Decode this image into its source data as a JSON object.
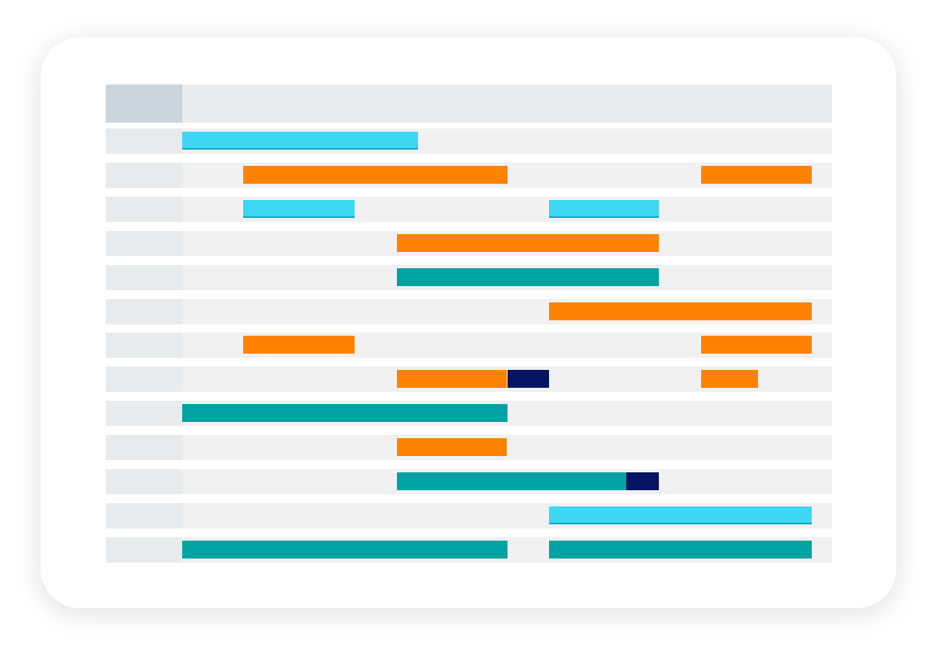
{
  "colors": {
    "orange": "#ff8200",
    "light_blue": "#3dd7f4",
    "light_blue_edge": "#12a8c4",
    "teal": "#00a3a1",
    "navy": "#061361"
  },
  "timeline": {
    "start": 0,
    "end": 100
  },
  "rows": [
    {
      "bars": [
        {
          "start": 0,
          "end": 36.3,
          "color": "light_blue"
        }
      ]
    },
    {
      "bars": [
        {
          "start": 9.4,
          "end": 50.1,
          "color": "orange"
        },
        {
          "start": 79.9,
          "end": 96.9,
          "color": "orange"
        }
      ]
    },
    {
      "bars": [
        {
          "start": 9.4,
          "end": 26.5,
          "color": "light_blue"
        },
        {
          "start": 56.5,
          "end": 73.4,
          "color": "light_blue"
        }
      ]
    },
    {
      "bars": [
        {
          "start": 33.0,
          "end": 73.4,
          "color": "orange"
        }
      ]
    },
    {
      "bars": [
        {
          "start": 33.0,
          "end": 73.4,
          "color": "teal"
        }
      ]
    },
    {
      "bars": [
        {
          "start": 56.5,
          "end": 96.9,
          "color": "orange"
        }
      ]
    },
    {
      "bars": [
        {
          "start": 9.4,
          "end": 26.5,
          "color": "orange"
        },
        {
          "start": 79.9,
          "end": 96.9,
          "color": "orange"
        }
      ]
    },
    {
      "bars": [
        {
          "start": 33.0,
          "end": 50.0,
          "color": "orange"
        },
        {
          "start": 50.0,
          "end": 56.5,
          "color": "navy"
        },
        {
          "start": 79.9,
          "end": 88.6,
          "color": "orange"
        }
      ]
    },
    {
      "bars": [
        {
          "start": 0,
          "end": 50.0,
          "color": "teal"
        }
      ]
    },
    {
      "bars": [
        {
          "start": 33.0,
          "end": 50.0,
          "color": "orange"
        }
      ]
    },
    {
      "bars": [
        {
          "start": 33.0,
          "end": 68.3,
          "color": "teal"
        },
        {
          "start": 68.3,
          "end": 73.4,
          "color": "navy"
        }
      ]
    },
    {
      "bars": [
        {
          "start": 56.5,
          "end": 96.9,
          "color": "light_blue"
        }
      ]
    },
    {
      "bars": [
        {
          "start": 0,
          "end": 50.0,
          "color": "teal"
        },
        {
          "start": 56.5,
          "end": 96.9,
          "color": "teal"
        }
      ]
    }
  ]
}
